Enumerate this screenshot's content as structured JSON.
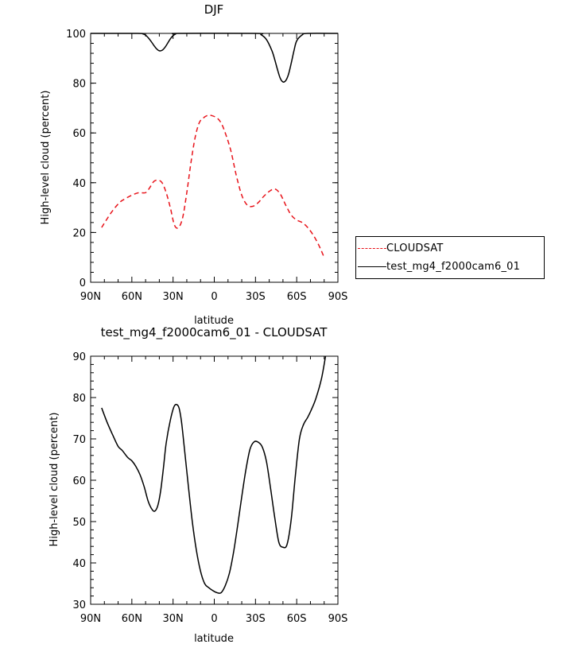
{
  "chart_data": [
    {
      "type": "line",
      "title": "DJF",
      "xlabel": "latitude",
      "ylabel": "High-level cloud (percent)",
      "xlim": [
        -90,
        90
      ],
      "ylim": [
        0,
        100
      ],
      "xticks": [
        -90,
        -60,
        -30,
        0,
        30,
        60,
        90
      ],
      "xtick_labels": [
        "90N",
        "60N",
        "30N",
        "0",
        "30S",
        "60S",
        "90S"
      ],
      "yticks": [
        0,
        20,
        40,
        60,
        80,
        100
      ],
      "ytick_labels": [
        "0",
        "20",
        "40",
        "60",
        "80",
        "100"
      ],
      "grid": false,
      "legend": "right",
      "series": [
        {
          "name": "CLOUDSAT",
          "color": "#e8141b",
          "dash": "dashed",
          "x": [
            -82,
            -75,
            -69,
            -65,
            -60,
            -55,
            -50,
            -47,
            -44,
            -41,
            -38,
            -35,
            -32,
            -29,
            -26,
            -23,
            -20,
            -17,
            -14,
            -11,
            -8,
            -5,
            -2,
            2,
            5,
            8,
            12,
            16,
            20,
            24,
            28,
            32,
            36,
            40,
            44,
            48,
            52,
            56,
            60,
            64,
            68,
            72,
            76,
            80
          ],
          "y": [
            22,
            28,
            32,
            33.5,
            35,
            36,
            36,
            38,
            40.5,
            41,
            40,
            36,
            30,
            23,
            22,
            26,
            36,
            48,
            58,
            64,
            66,
            67,
            67,
            66,
            64,
            60,
            53,
            43,
            35,
            31,
            30.5,
            32,
            34.5,
            36.5,
            37.5,
            35.5,
            31,
            27,
            25,
            24,
            22,
            19,
            15,
            10
          ]
        },
        {
          "name": "test_mg4_f2000cam6_01",
          "color": "#000000",
          "dash": "solid",
          "x": [
            -90,
            -56,
            -52,
            -50,
            -48,
            -46,
            -44,
            -42,
            -40,
            -38,
            -36,
            -34,
            -32,
            -30,
            -28,
            -26,
            30,
            34,
            38,
            42,
            44,
            46,
            48,
            50,
            52,
            54,
            56,
            58,
            60,
            64,
            68,
            90
          ],
          "y": [
            100,
            100,
            99.8,
            99.3,
            98.2,
            96.8,
            95.2,
            93.8,
            93,
            93.2,
            94.3,
            96,
            97.8,
            99.1,
            99.8,
            100,
            100,
            99.5,
            97.5,
            93,
            89.5,
            85.5,
            82,
            80.5,
            81,
            83.5,
            88,
            93,
            97,
            99.4,
            100,
            100
          ]
        }
      ]
    },
    {
      "type": "line",
      "title": "test_mg4_f2000cam6_01 - CLOUDSAT",
      "xlabel": "latitude",
      "ylabel": "High-level cloud (percent)",
      "xlim": [
        -90,
        90
      ],
      "ylim": [
        30,
        90
      ],
      "xticks": [
        -90,
        -60,
        -30,
        0,
        30,
        60,
        90
      ],
      "xtick_labels": [
        "90N",
        "60N",
        "30N",
        "0",
        "30S",
        "60S",
        "90S"
      ],
      "yticks": [
        30,
        40,
        50,
        60,
        70,
        80,
        90
      ],
      "ytick_labels": [
        "30",
        "40",
        "50",
        "60",
        "70",
        "80",
        "90"
      ],
      "grid": false,
      "series": [
        {
          "color": "#000000",
          "dash": "solid",
          "x": [
            -82,
            -78,
            -74,
            -70,
            -67,
            -63,
            -60,
            -57,
            -54,
            -51,
            -48,
            -45,
            -43,
            -41,
            -39,
            -37,
            -35,
            -32,
            -29,
            -26,
            -24,
            -22,
            -19,
            -16,
            -13,
            -10,
            -7,
            -4,
            -1,
            2,
            5,
            8,
            11,
            14,
            17,
            20,
            23,
            26,
            29,
            32,
            35,
            38,
            41,
            44,
            47,
            50,
            53,
            56,
            59,
            62,
            65,
            68,
            71,
            74,
            78,
            81
          ],
          "y": [
            77.5,
            74,
            71,
            68.2,
            67.2,
            65.5,
            64.7,
            63.3,
            61.3,
            58.4,
            54.8,
            52.8,
            52.6,
            54,
            57.5,
            63,
            69,
            74.5,
            78,
            77.8,
            74.5,
            68.5,
            59,
            50,
            43,
            38,
            35,
            34,
            33.3,
            32.8,
            32.8,
            34.5,
            37.5,
            42.5,
            49,
            56,
            62.5,
            67.5,
            69.3,
            69.2,
            68,
            64.5,
            58,
            51,
            45,
            43.8,
            44.5,
            50.5,
            61,
            70,
            73.5,
            75.2,
            77.3,
            79.8,
            84.5,
            90
          ]
        }
      ]
    }
  ]
}
